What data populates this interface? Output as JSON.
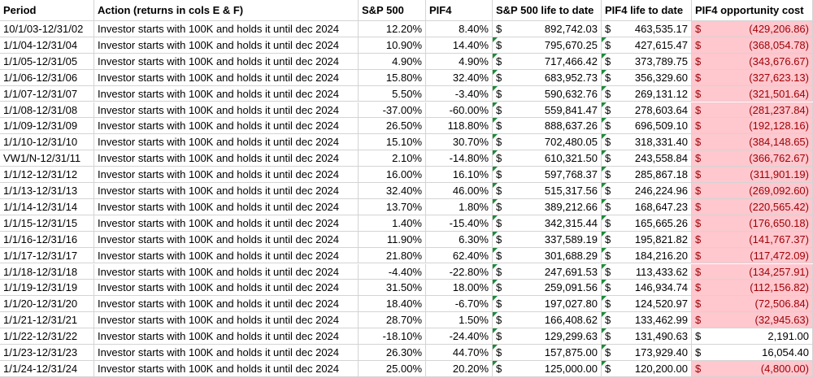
{
  "currency": "$",
  "table": {
    "header": [
      "Period",
      "Action (returns in cols E & F)",
      "S&P 500",
      "PIF4",
      "S&P 500 life to date",
      "PIF4 life to date",
      "PIF4 opportunity cost"
    ],
    "rows": [
      [
        "10/1/03-12/31/02",
        "Investor starts with 100K and holds it until dec 2024",
        "12.20%",
        "8.40%",
        "892,742.03",
        "463,535.17",
        "(429,206.86)"
      ],
      [
        "1/1/04-12/31/04",
        "Investor starts with 100K and holds it until dec 2024",
        "10.90%",
        "14.40%",
        "795,670.25",
        "427,615.47",
        "(368,054.78)"
      ],
      [
        "1/1/05-12/31/05",
        "Investor starts with 100K and holds it until dec 2024",
        "4.90%",
        "4.90%",
        "717,466.42",
        "373,789.75",
        "(343,676.67)"
      ],
      [
        "1/1/06-12/31/06",
        "Investor starts with 100K and holds it until dec 2024",
        "15.80%",
        "32.40%",
        "683,952.73",
        "356,329.60",
        "(327,623.13)"
      ],
      [
        "1/1/07-12/31/07",
        "Investor starts with 100K and holds it until dec 2024",
        "5.50%",
        "-3.40%",
        "590,632.76",
        "269,131.12",
        "(321,501.64)"
      ],
      [
        "1/1/08-12/31/08",
        "Investor starts with 100K and holds it until dec 2024",
        "-37.00%",
        "-60.00%",
        "559,841.47",
        "278,603.64",
        "(281,237.84)"
      ],
      [
        "1/1/09-12/31/09",
        "Investor starts with 100K and holds it until dec 2024",
        "26.50%",
        "118.80%",
        "888,637.26",
        "696,509.10",
        "(192,128.16)"
      ],
      [
        "1/1/10-12/31/10",
        "Investor starts with 100K and holds it until dec 2024",
        "15.10%",
        "30.70%",
        "702,480.05",
        "318,331.40",
        "(384,148.65)"
      ],
      [
        "VW1/N-12/31/11",
        "Investor starts with 100K and holds it until dec 2024",
        "2.10%",
        "-14.80%",
        "610,321.50",
        "243,558.84",
        "(366,762.67)"
      ],
      [
        "1/1/12-12/31/12",
        "Investor starts with 100K and holds it until dec 2024",
        "16.00%",
        "16.10%",
        "597,768.37",
        "285,867.18",
        "(311,901.19)"
      ],
      [
        "1/1/13-12/31/13",
        "Investor starts with 100K and holds it until dec 2024",
        "32.40%",
        "46.00%",
        "515,317.56",
        "246,224.96",
        "(269,092.60)"
      ],
      [
        "1/1/14-12/31/14",
        "Investor starts with 100K and holds it until dec 2024",
        "13.70%",
        "1.80%",
        "389,212.66",
        "168,647.23",
        "(220,565.42)"
      ],
      [
        "1/1/15-12/31/15",
        "Investor starts with 100K and holds it until dec 2024",
        "1.40%",
        "-15.40%",
        "342,315.44",
        "165,665.26",
        "(176,650.18)"
      ],
      [
        "1/1/16-12/31/16",
        "Investor starts with 100K and holds it until dec 2024",
        "11.90%",
        "6.30%",
        "337,589.19",
        "195,821.82",
        "(141,767.37)"
      ],
      [
        "1/1/17-12/31/17",
        "Investor starts with 100K and holds it until dec 2024",
        "21.80%",
        "62.40%",
        "301,688.29",
        "184,216.20",
        "(117,472.09)"
      ],
      [
        "1/1/18-12/31/18",
        "Investor starts with 100K and holds it until dec 2024",
        "-4.40%",
        "-22.80%",
        "247,691.53",
        "113,433.62",
        "(134,257.91)"
      ],
      [
        "1/1/19-12/31/19",
        "Investor starts with 100K and holds it until dec 2024",
        "31.50%",
        "18.00%",
        "259,091.56",
        "146,934.74",
        "(112,156.82)"
      ],
      [
        "1/1/20-12/31/20",
        "Investor starts with 100K and holds it until dec 2024",
        "18.40%",
        "-6.70%",
        "197,027.80",
        "124,520.97",
        "(72,506.84)"
      ],
      [
        "1/1/21-12/31/21",
        "Investor starts with 100K and holds it until dec 2024",
        "28.70%",
        "1.50%",
        "166,408.62",
        "133,462.99",
        "(32,945.63)"
      ],
      [
        "1/1/22-12/31/22",
        "Investor starts with 100K and holds it until dec 2024",
        "-18.10%",
        "-24.40%",
        "129,299.63",
        "131,490.63",
        "2,191.00"
      ],
      [
        "1/1/23-12/31/23",
        "Investor starts with 100K and holds it until dec 2024",
        "26.30%",
        "44.70%",
        "157,875.00",
        "173,929.40",
        "16,054.40"
      ],
      [
        "1/1/24-12/31/24",
        "Investor starts with 100K and holds it until dec 2024",
        "25.00%",
        "20.20%",
        "125,000.00",
        "120,200.00",
        "(4,800.00)"
      ]
    ]
  }
}
